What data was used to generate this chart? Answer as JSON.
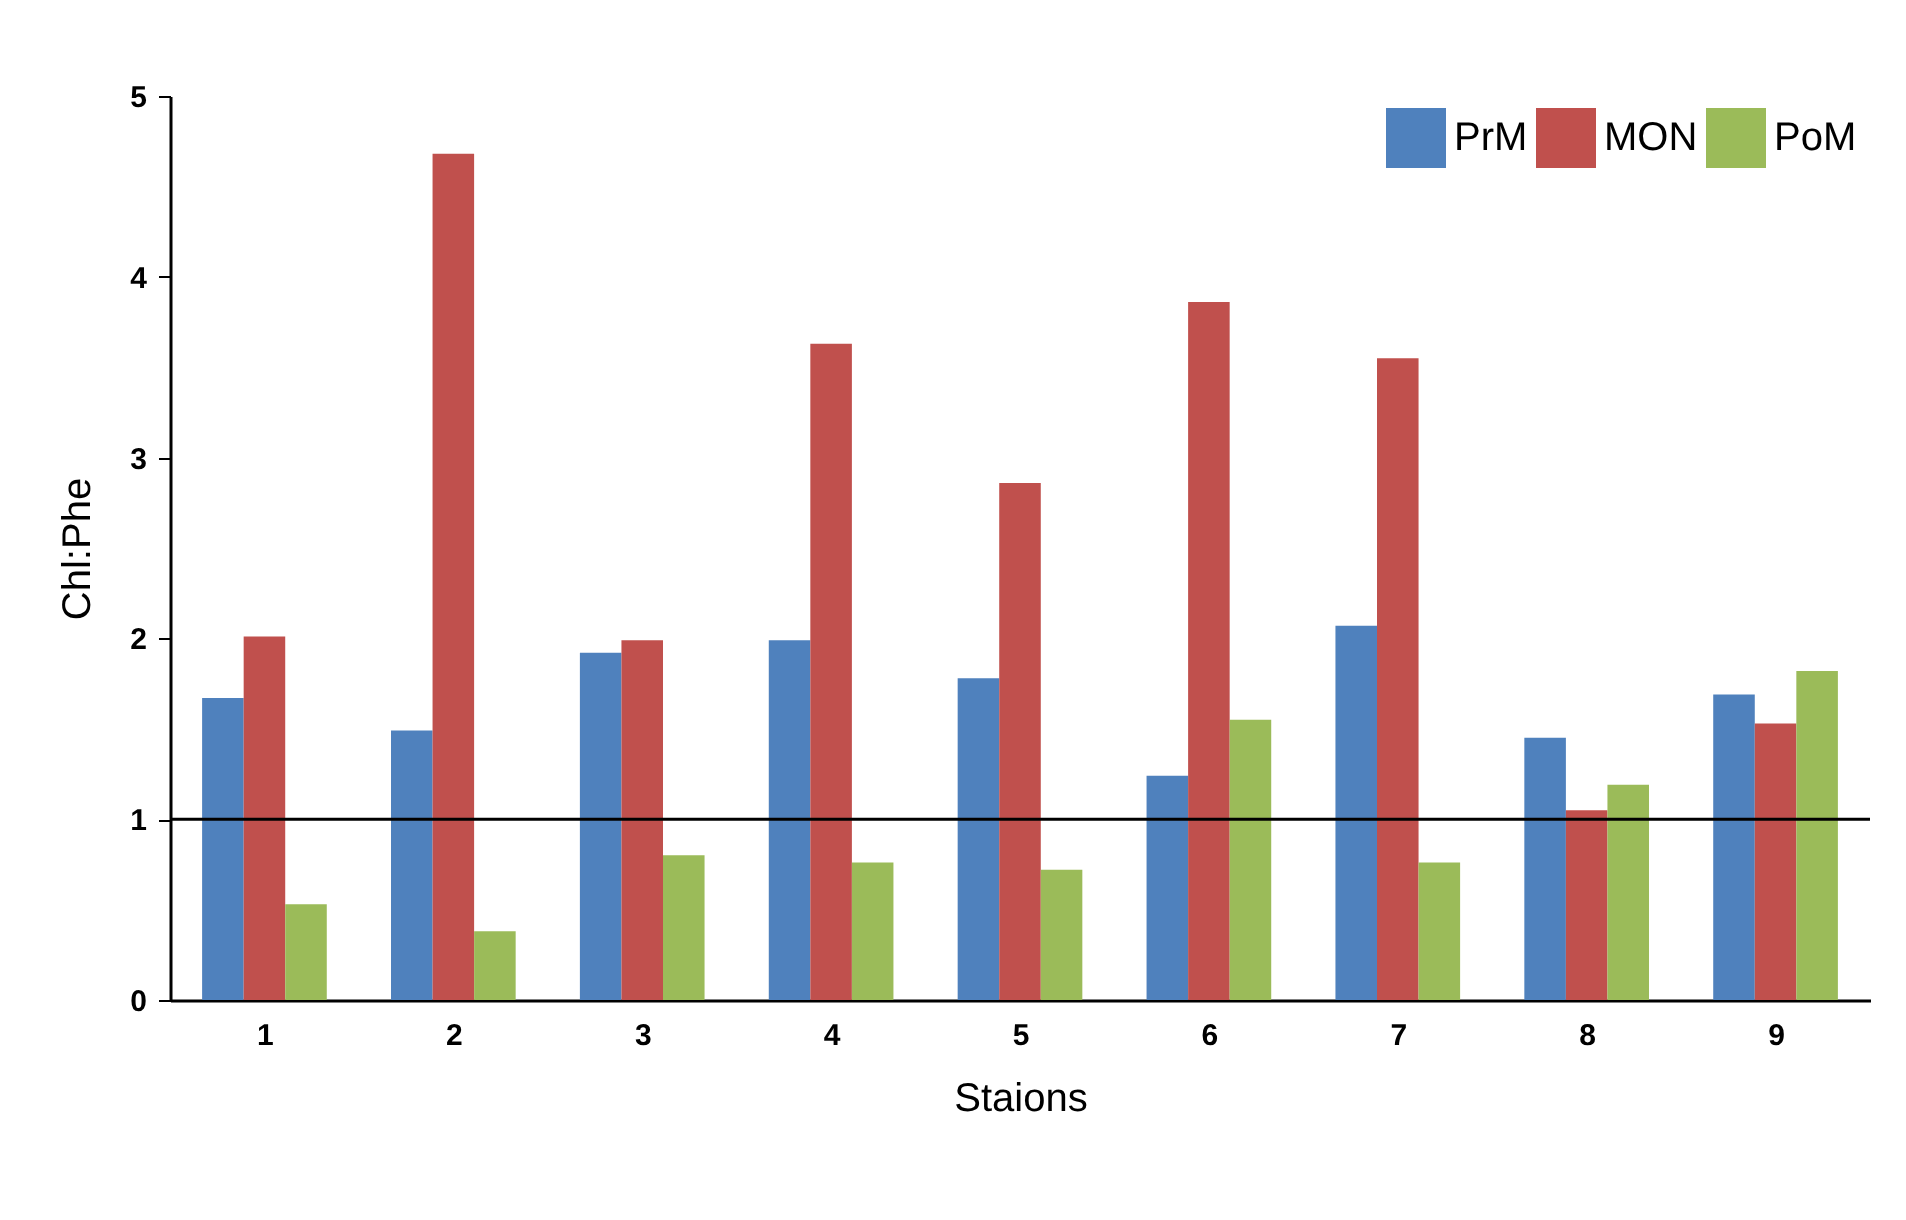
{
  "chart_data": {
    "type": "bar",
    "xlabel": "Staions",
    "ylabel": "Chl:Phe",
    "categories": [
      "1",
      "2",
      "3",
      "4",
      "5",
      "6",
      "7",
      "8",
      "9"
    ],
    "series": [
      {
        "name": "PrM",
        "color": "#4f81bd",
        "values": [
          1.67,
          1.49,
          1.92,
          1.99,
          1.78,
          1.24,
          2.07,
          1.45,
          1.69
        ]
      },
      {
        "name": "MON",
        "color": "#c0504d",
        "values": [
          2.01,
          4.68,
          1.99,
          3.63,
          2.86,
          3.86,
          3.55,
          1.05,
          1.53
        ]
      },
      {
        "name": "PoM",
        "color": "#9bbb59",
        "values": [
          0.53,
          0.38,
          0.8,
          0.76,
          0.72,
          1.55,
          0.76,
          1.19,
          1.82
        ]
      }
    ],
    "ylim": [
      0,
      5
    ],
    "yticks": [
      0,
      1,
      2,
      3,
      4,
      5
    ],
    "grid": false,
    "legend": "top right",
    "ref_lines": [
      {
        "axis": "y",
        "value": 1,
        "color": "#000000"
      }
    ]
  }
}
